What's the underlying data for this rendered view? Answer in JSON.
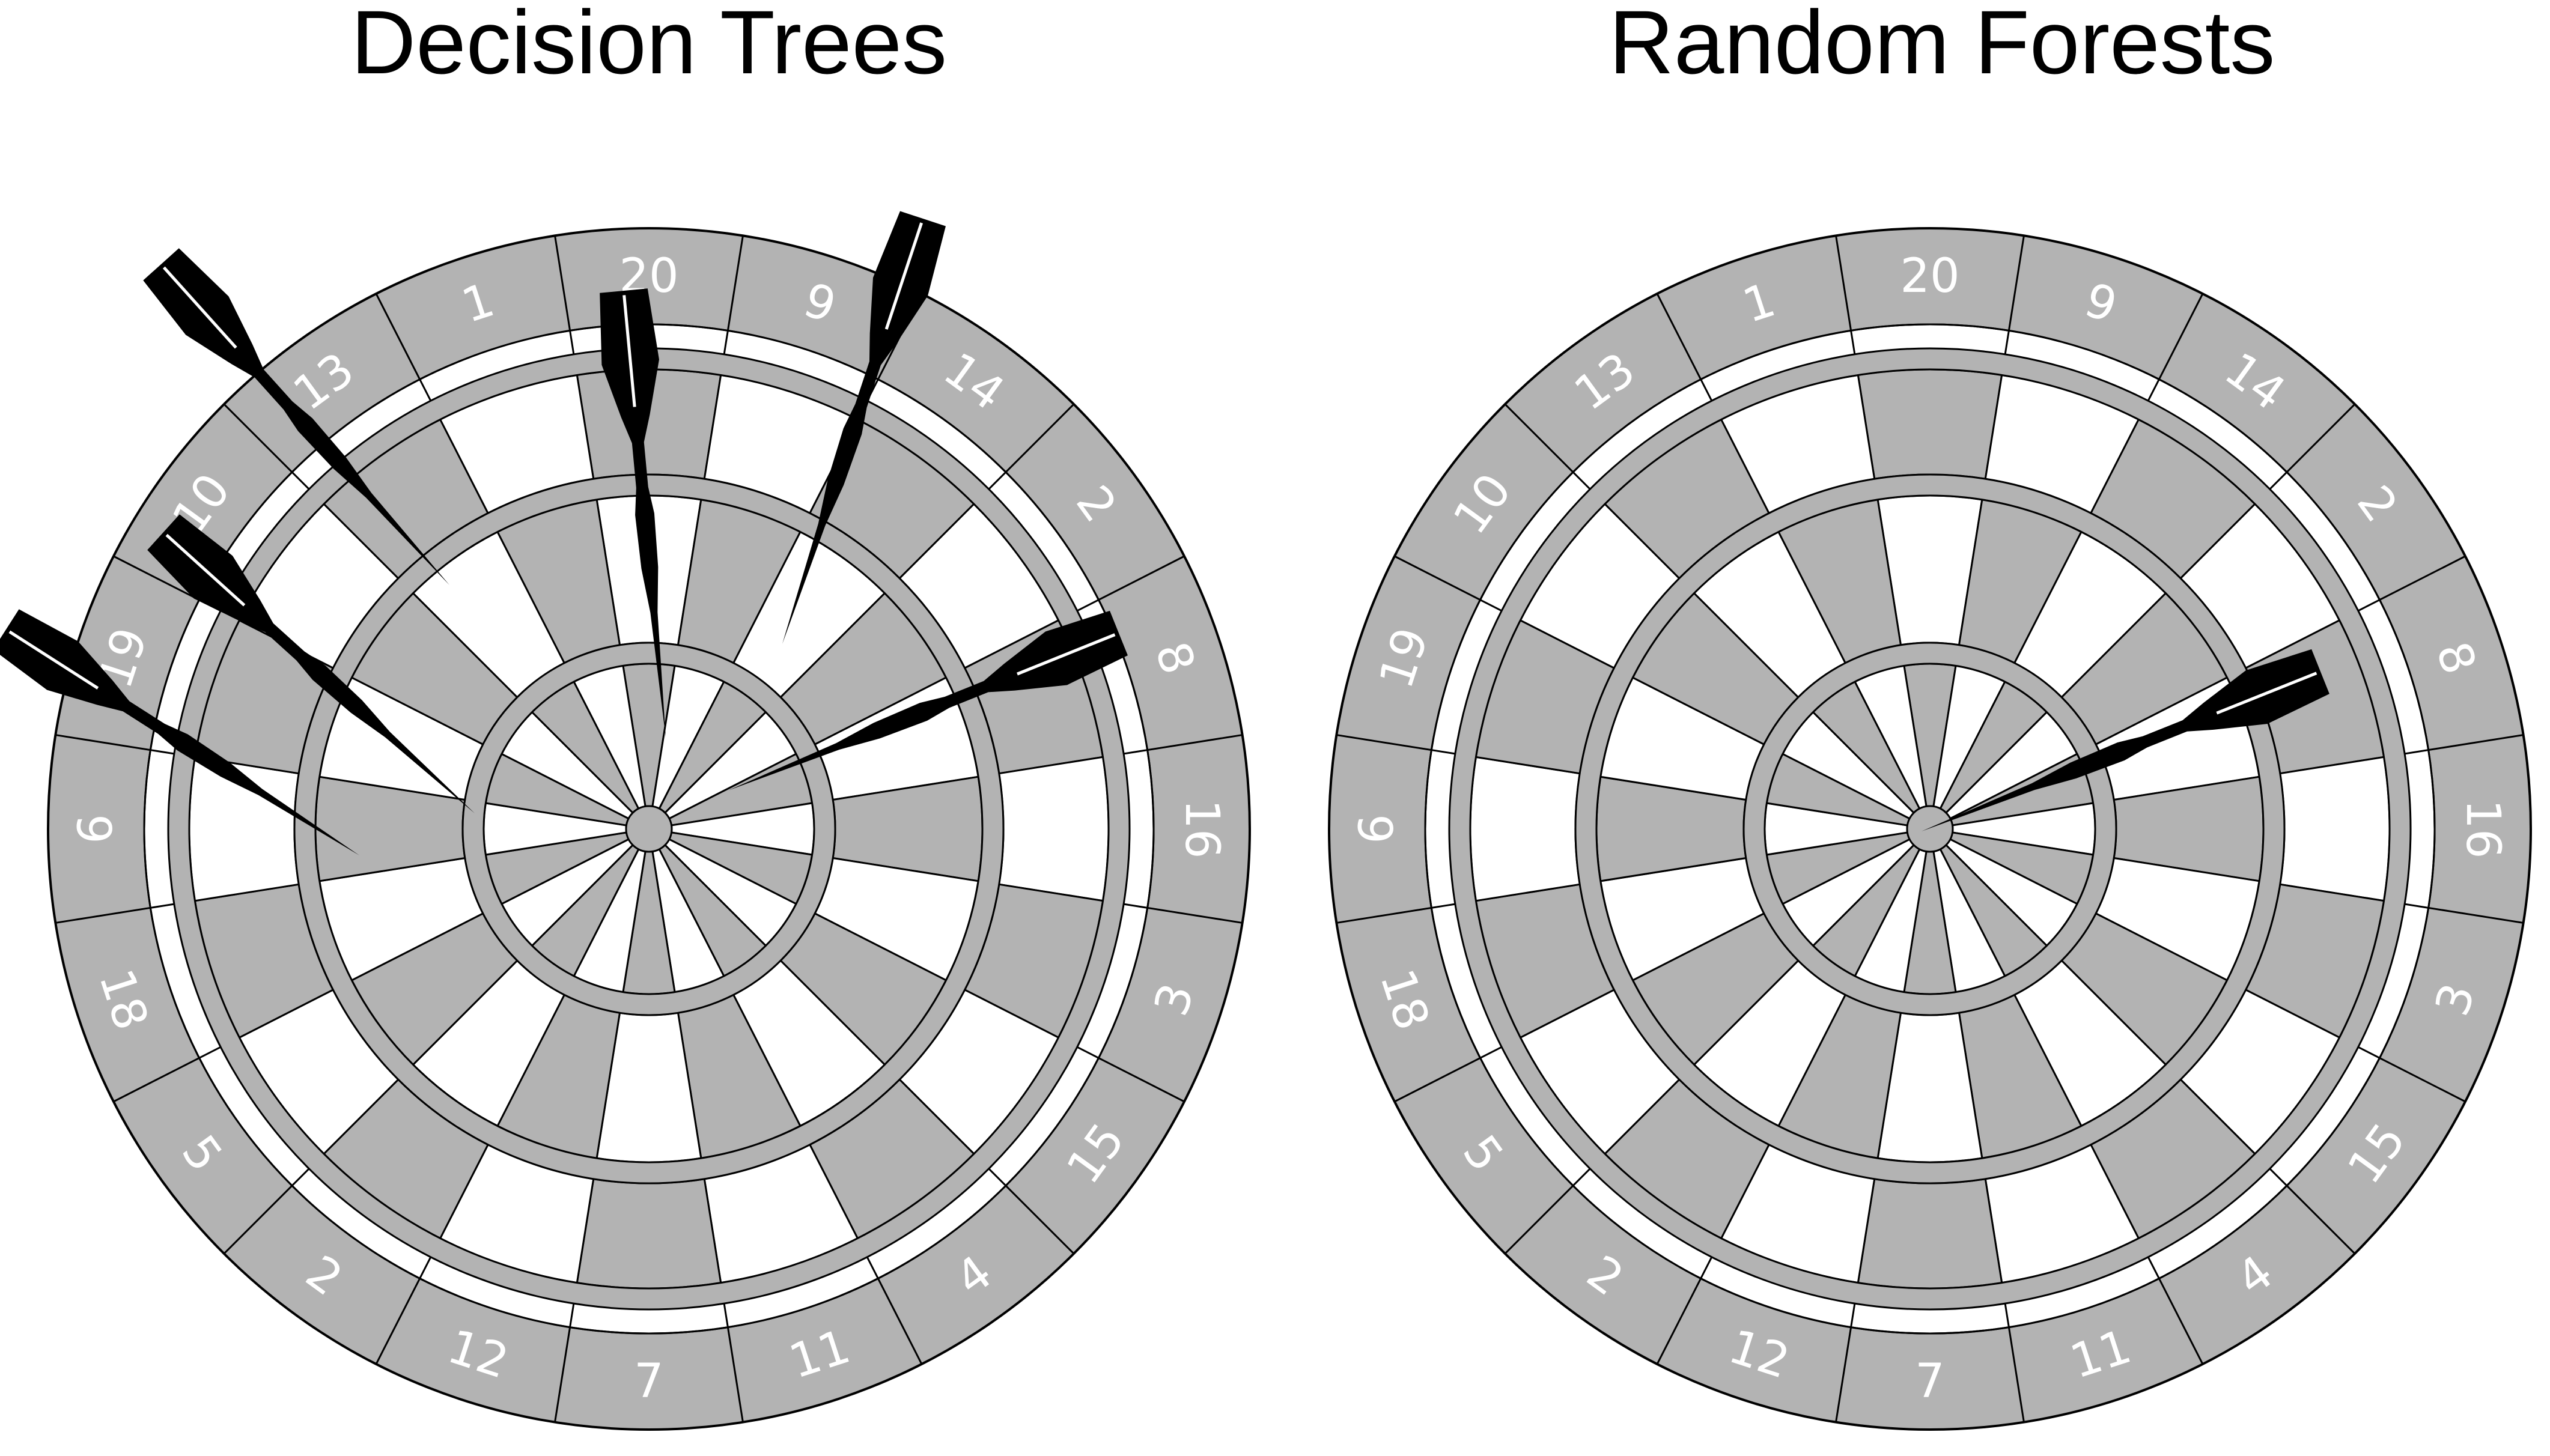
{
  "colors": {
    "segment_dark": "#b3b3b3",
    "segment_light": "#ffffff",
    "stroke": "#000000",
    "dart": "#000000",
    "number_text": "#ffffff"
  },
  "boards": [
    {
      "title": "Decision Trees",
      "numbers": [
        "20",
        "9",
        "14",
        "2",
        "8",
        "16",
        "3",
        "15",
        "4",
        "11",
        "7",
        "12",
        "2",
        "5",
        "18",
        "6",
        "19",
        "10",
        "13",
        "1"
      ],
      "darts": 6
    },
    {
      "title": "Random Forests",
      "numbers": [
        "20",
        "9",
        "14",
        "2",
        "8",
        "16",
        "3",
        "15",
        "4",
        "11",
        "7",
        "12",
        "2",
        "5",
        "18",
        "6",
        "19",
        "10",
        "13",
        "1"
      ],
      "darts": 1
    }
  ]
}
